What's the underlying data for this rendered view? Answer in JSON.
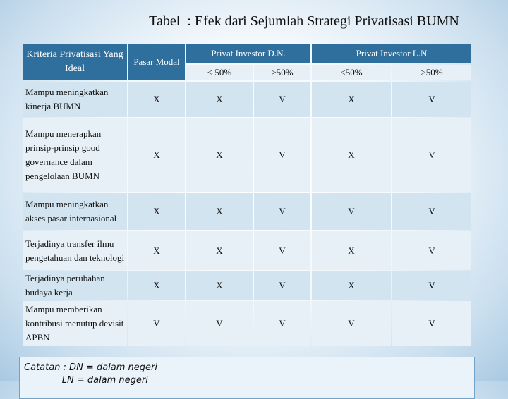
{
  "title": "Tabel  : Efek dari Sejumlah Strategi Privatisasi BUMN",
  "header": {
    "kriteria": "Kriteria Privatisasi Yang Ideal",
    "pasar": "Pasar Modal",
    "dn": "Privat Investor D.N.",
    "ln": "Privat Investor L.N",
    "sub": [
      "< 50%",
      ">50%",
      "<50%",
      ">50%"
    ]
  },
  "rows": [
    {
      "label": "Mampu  meningkatkan kinerja BUMN",
      "values": [
        "X",
        "X",
        "V",
        "X",
        "V"
      ]
    },
    {
      "label": "Mampu  menerapkan prinsip-prinsip good governance dalam pengelolaan BUMN",
      "values": [
        "X",
        "X",
        "V",
        "X",
        "V"
      ]
    },
    {
      "label": "Mampu  meningkatkan akses pasar internasional",
      "values": [
        "X",
        "X",
        "V",
        "V",
        "V"
      ]
    },
    {
      "label": "Terjadinya transfer ilmu pengetahuan dan teknologi",
      "values": [
        "X",
        "X",
        "V",
        "X",
        "V"
      ]
    },
    {
      "label": "Terjadinya perubahan budaya kerja",
      "values": [
        "X",
        "X",
        "V",
        "X",
        "V"
      ]
    },
    {
      "label": "Mampu memberikan kontribusi menutup devisit APBN",
      "values": [
        "V",
        "V",
        "V",
        "V",
        "V"
      ]
    }
  ],
  "note": {
    "line1": "Catatan : DN = dalam negeri",
    "line2": "             LN = dalam negeri"
  }
}
